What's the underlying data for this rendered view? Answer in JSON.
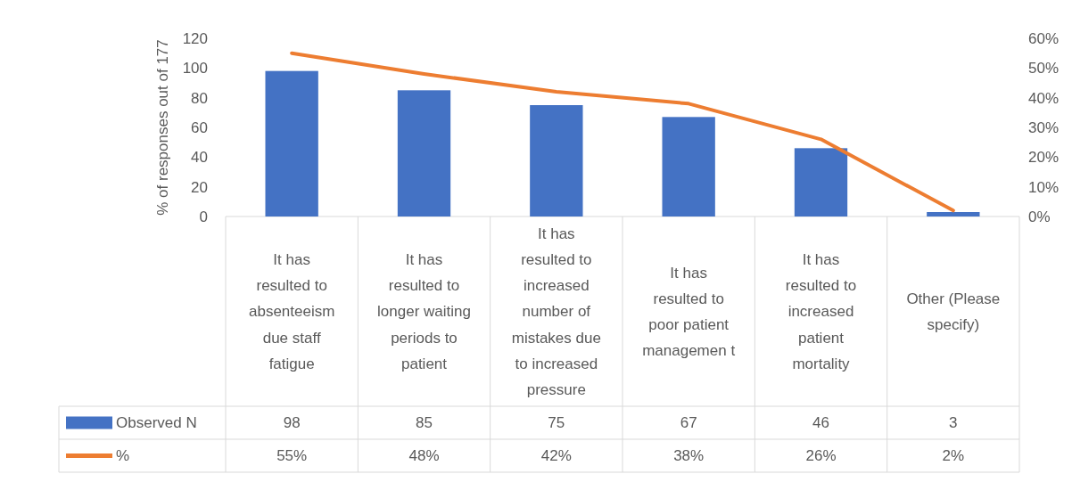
{
  "chart_data": {
    "type": "bar",
    "ylabel": "% of responses out of 177",
    "categories": [
      "It has resulted to absenteeism due staff fatigue",
      "It has resulted to longer waiting periods to patient",
      "It has resulted to increased number of mistakes due to increased pressure",
      "It has resulted to poor patient managemen t",
      "It has resulted to increased patient mortality",
      "Other (Please specify)"
    ],
    "series": [
      {
        "name": "Observed N",
        "color": "#4472c4",
        "values": [
          98,
          85,
          75,
          67,
          46,
          3
        ],
        "value_labels": [
          "98",
          "85",
          "75",
          "67",
          "46",
          "3"
        ]
      },
      {
        "name": "%",
        "type": "line",
        "axis": "y2",
        "color": "#ed7d31",
        "values": [
          55,
          48,
          42,
          38,
          26,
          2
        ],
        "value_labels": [
          "55%",
          "48%",
          "42%",
          "38%",
          "26%",
          "2%"
        ]
      }
    ],
    "ylim": [
      0,
      120
    ],
    "yticks": [
      0,
      20,
      40,
      60,
      80,
      100,
      120
    ],
    "y2lim": [
      0,
      60
    ],
    "y2ticks": [
      {
        "value": 0,
        "label": "0%"
      },
      {
        "value": 10,
        "label": "10%"
      },
      {
        "value": 20,
        "label": "20%"
      },
      {
        "value": 30,
        "label": "30%"
      },
      {
        "value": 40,
        "label": "40%"
      },
      {
        "value": 50,
        "label": "50%"
      },
      {
        "value": 60,
        "label": "60%"
      }
    ],
    "legend": "bottom",
    "grid": false,
    "marker": "none",
    "line_style": "solid"
  }
}
